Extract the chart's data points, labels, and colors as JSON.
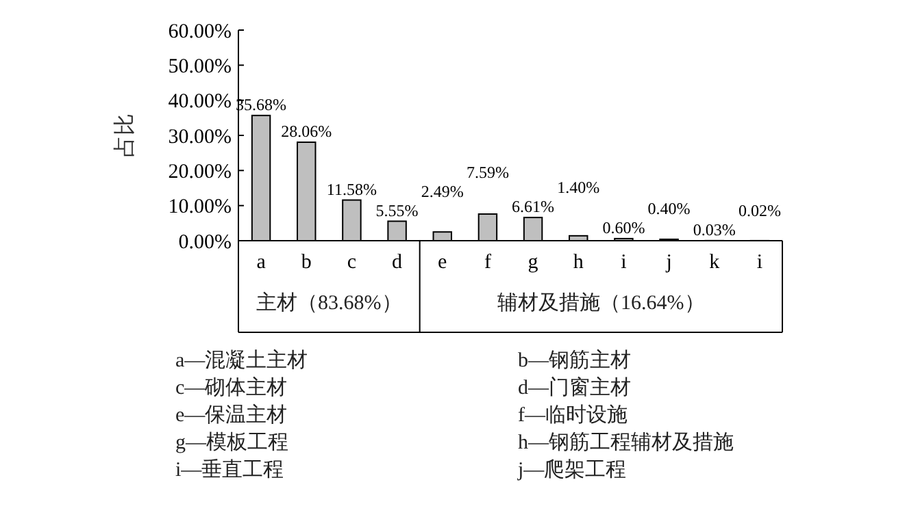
{
  "chart_data": {
    "type": "bar",
    "ylabel": "占比",
    "categories": [
      "a",
      "b",
      "c",
      "d",
      "e",
      "f",
      "g",
      "h",
      "i",
      "j",
      "k",
      "i"
    ],
    "values": [
      35.68,
      28.06,
      11.58,
      5.55,
      2.49,
      7.59,
      6.61,
      1.4,
      0.6,
      0.4,
      0.03,
      0.02
    ],
    "value_labels": [
      "35.68%",
      "28.06%",
      "11.58%",
      "5.55%",
      "2.49%",
      "7.59%",
      "6.61%",
      "1.40%",
      "0.60%",
      "0.40%",
      "0.03%",
      "0.02%"
    ],
    "color": "#bfbfbf",
    "ylim": [
      0,
      60
    ],
    "yticks": [
      {
        "value": 0,
        "label": "0.00%"
      },
      {
        "value": 10,
        "label": "10.00%"
      },
      {
        "value": 20,
        "label": "20.00%"
      },
      {
        "value": 30,
        "label": "30.00%"
      },
      {
        "value": 40,
        "label": "40.00%"
      },
      {
        "value": 50,
        "label": "50.00%"
      },
      {
        "value": 60,
        "label": "60.00%"
      }
    ],
    "annotations": [
      "主材（83.68%）",
      "辅材及措施（16.64%）",
      "a—混凝土主材",
      "b—钢筋主材",
      "c—砌体主材",
      "d—门窗主材",
      "e—保温主材",
      "f—临时设施",
      "g—模板工程",
      "h—钢筋工程辅材及措施",
      "i—垂直工程",
      "j—爬架工程"
    ]
  }
}
